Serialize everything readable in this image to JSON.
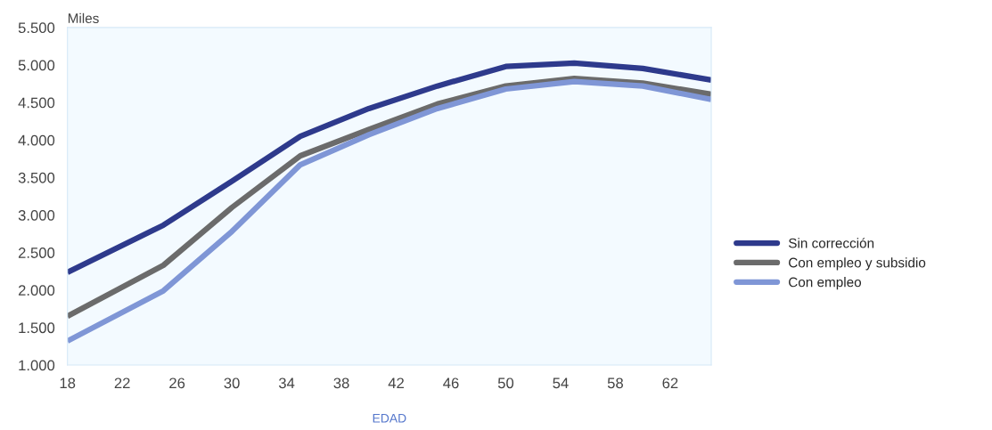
{
  "chart_data": {
    "type": "line",
    "xlabel": "EDAD",
    "ylabel": "Miles",
    "x": [
      18,
      25,
      30,
      35,
      40,
      45,
      50,
      55,
      60,
      65
    ],
    "series": [
      {
        "name": "Sin corrección",
        "color": "#2e3a8c",
        "values": [
          2235,
          2865,
          3450,
          4050,
          4420,
          4720,
          4980,
          5025,
          4955,
          4800
        ]
      },
      {
        "name": "Con empleo y subsidio",
        "color": "#6b6b6b",
        "values": [
          1650,
          2330,
          3100,
          3790,
          4140,
          4480,
          4720,
          4820,
          4760,
          4610
        ]
      },
      {
        "name": "Con empleo",
        "color": "#7f96d6",
        "values": [
          1320,
          1990,
          2780,
          3670,
          4070,
          4420,
          4680,
          4780,
          4720,
          4540
        ]
      }
    ],
    "xlim": [
      18,
      65
    ],
    "xticks": [
      18,
      22,
      26,
      30,
      34,
      38,
      42,
      46,
      50,
      54,
      58,
      62
    ],
    "ylim": [
      1000,
      5500
    ],
    "yticks": [
      {
        "value": 1000,
        "label": "1.000"
      },
      {
        "value": 1500,
        "label": "1.500"
      },
      {
        "value": 2000,
        "label": "2.000"
      },
      {
        "value": 2500,
        "label": "2.500"
      },
      {
        "value": 3000,
        "label": "3.000"
      },
      {
        "value": 3500,
        "label": "3.500"
      },
      {
        "value": 4000,
        "label": "4.000"
      },
      {
        "value": 4500,
        "label": "4.500"
      },
      {
        "value": 5000,
        "label": "5.000"
      },
      {
        "value": 5500,
        "label": "5.500"
      }
    ],
    "grid": false,
    "legend": "right",
    "marker": "none",
    "line_style": "solid"
  }
}
